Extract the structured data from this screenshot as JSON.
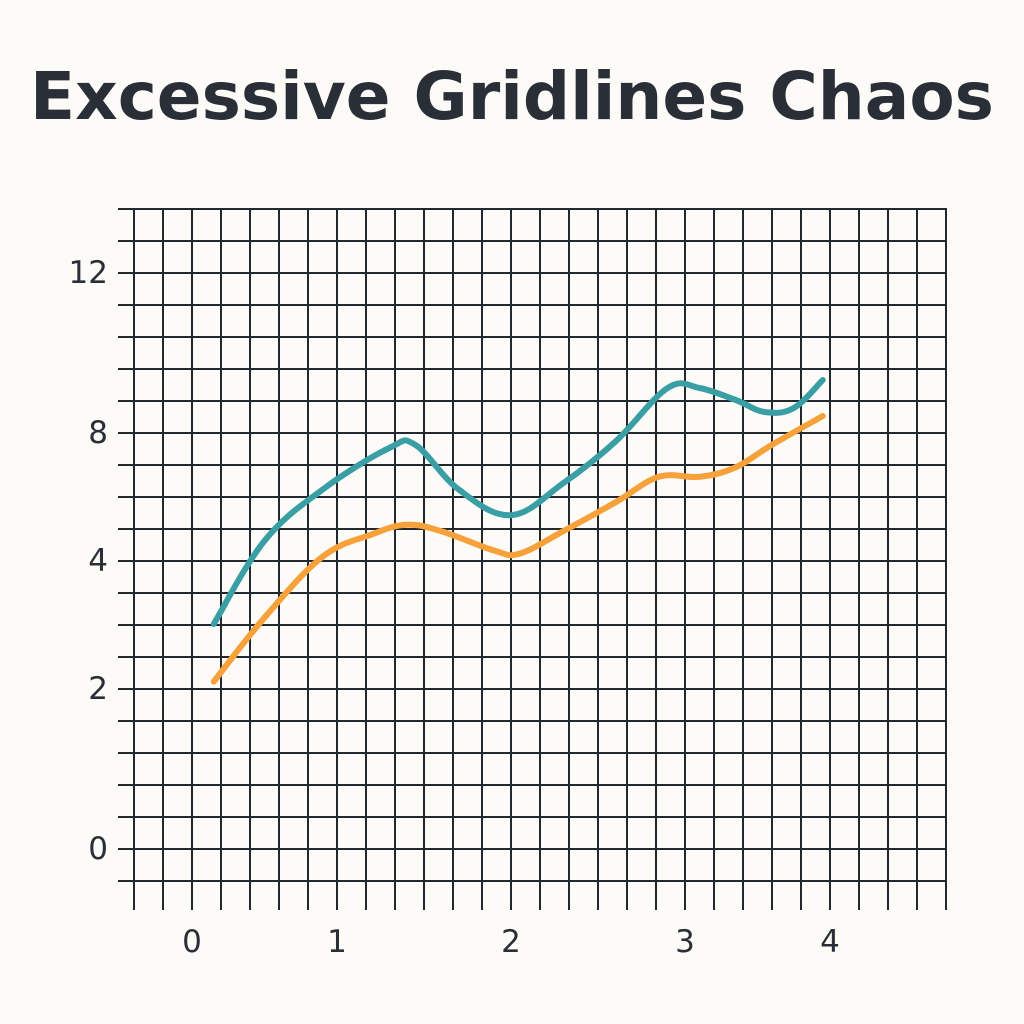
{
  "chart_data": {
    "type": "line",
    "title": "Excessive Gridlines Chaos",
    "xlabel": "",
    "ylabel": "",
    "x_ticks": [
      "0",
      "1",
      "2",
      "3",
      "4"
    ],
    "y_ticks": [
      "0",
      "2",
      "4",
      "8",
      "12"
    ],
    "grid": true,
    "legend": "none",
    "series": [
      {
        "color": "#3a9ea5",
        "points": [
          [
            0.15,
            3.0
          ],
          [
            0.5,
            4.6
          ],
          [
            0.9,
            6.2
          ],
          [
            1.3,
            7.5
          ],
          [
            1.45,
            7.6
          ],
          [
            1.7,
            6.2
          ],
          [
            2.0,
            5.4
          ],
          [
            2.3,
            6.4
          ],
          [
            2.6,
            7.7
          ],
          [
            2.9,
            9.1
          ],
          [
            3.1,
            9.1
          ],
          [
            3.35,
            8.8
          ],
          [
            3.55,
            8.5
          ],
          [
            3.75,
            8.6
          ],
          [
            3.95,
            9.3
          ]
        ]
      },
      {
        "color": "#f6a13a",
        "points": [
          [
            0.15,
            2.1
          ],
          [
            0.5,
            3.1
          ],
          [
            0.9,
            4.1
          ],
          [
            1.2,
            4.8
          ],
          [
            1.4,
            5.1
          ],
          [
            1.6,
            4.9
          ],
          [
            1.9,
            4.3
          ],
          [
            2.05,
            4.2
          ],
          [
            2.3,
            4.9
          ],
          [
            2.6,
            5.8
          ],
          [
            2.85,
            6.6
          ],
          [
            3.1,
            6.6
          ],
          [
            3.35,
            6.9
          ],
          [
            3.6,
            7.6
          ],
          [
            3.95,
            8.4
          ]
        ]
      }
    ]
  }
}
